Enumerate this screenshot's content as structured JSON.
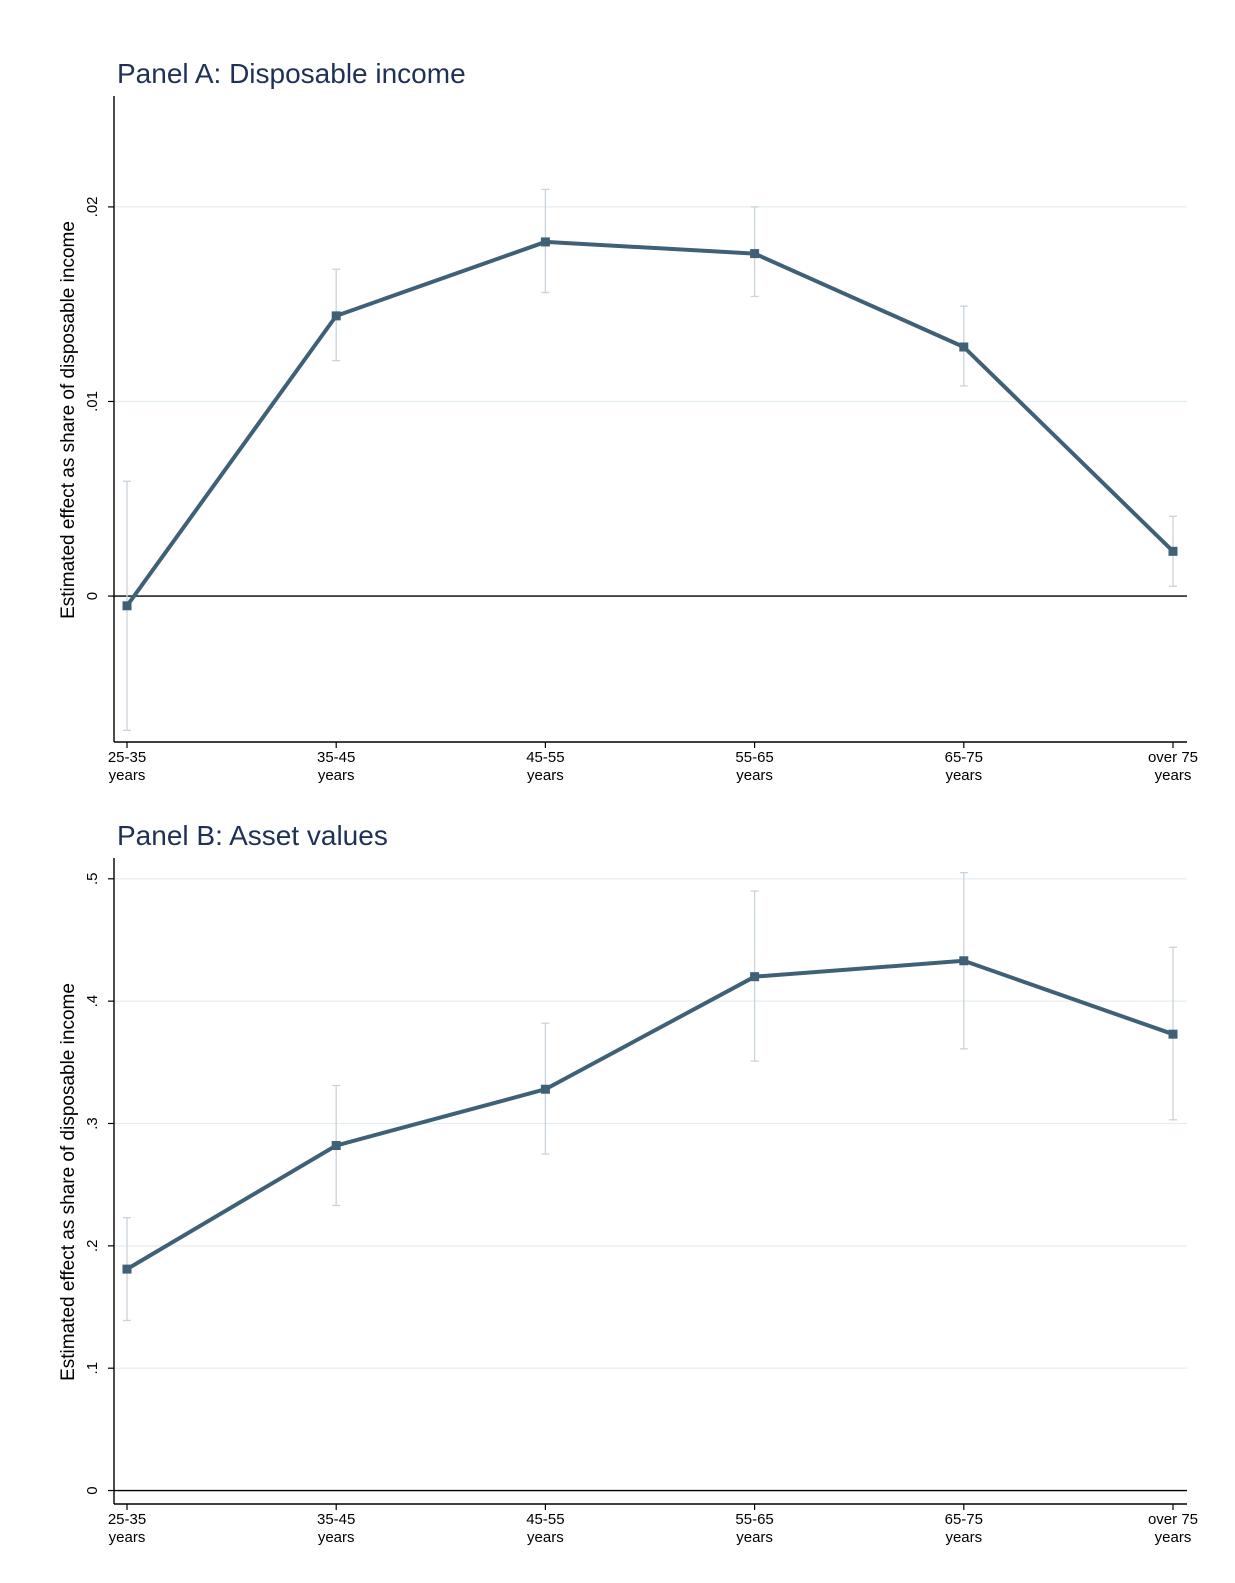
{
  "figure_colors": {
    "line": "#3f6178",
    "error_bar": "#c9d3da",
    "grid": "#e4eef0",
    "title": "#1f3157",
    "axis": "#000000"
  },
  "chart_data": [
    {
      "type": "line",
      "title": "Panel A: Disposable income",
      "ylabel": "Estimated effect as share of disposable income",
      "xlabel": "",
      "categories": [
        [
          "25-35",
          "years"
        ],
        [
          "35-45",
          "years"
        ],
        [
          "45-55",
          "years"
        ],
        [
          "55-65",
          "years"
        ],
        [
          "65-75",
          "years"
        ],
        [
          "over 75",
          "years"
        ]
      ],
      "yticks": [
        {
          "value": 0,
          "label": "0"
        },
        {
          "value": 0.01,
          "label": ".01"
        },
        {
          "value": 0.02,
          "label": ".02"
        }
      ],
      "ylim": [
        -0.0075,
        0.0257
      ],
      "grid": true,
      "series": [
        {
          "values": [
            -0.0005,
            0.0144,
            0.0182,
            0.0176,
            0.0128,
            0.0023
          ],
          "ci_low": [
            -0.0069,
            0.0121,
            0.0156,
            0.0154,
            0.0108,
            0.0005
          ],
          "ci_high": [
            0.0059,
            0.0168,
            0.0209,
            0.02,
            0.0149,
            0.0041
          ]
        }
      ]
    },
    {
      "type": "line",
      "title": "Panel B: Asset values",
      "ylabel": "Estimated effect as share of disposable income",
      "xlabel": "",
      "categories": [
        [
          "25-35",
          "years"
        ],
        [
          "35-45",
          "years"
        ],
        [
          "45-55",
          "years"
        ],
        [
          "55-65",
          "years"
        ],
        [
          "65-75",
          "years"
        ],
        [
          "over 75",
          "years"
        ]
      ],
      "yticks": [
        {
          "value": 0,
          "label": "0"
        },
        {
          "value": 0.1,
          "label": ".1"
        },
        {
          "value": 0.2,
          "label": ".2"
        },
        {
          "value": 0.3,
          "label": ".3"
        },
        {
          "value": 0.4,
          "label": ".4"
        },
        {
          "value": 0.5,
          "label": ".5"
        }
      ],
      "ylim": [
        -0.011,
        0.517
      ],
      "grid": true,
      "series": [
        {
          "values": [
            0.181,
            0.282,
            0.328,
            0.42,
            0.433,
            0.373
          ],
          "ci_low": [
            0.139,
            0.233,
            0.275,
            0.351,
            0.361,
            0.303
          ],
          "ci_high": [
            0.223,
            0.331,
            0.382,
            0.49,
            0.505,
            0.444
          ]
        }
      ]
    }
  ]
}
